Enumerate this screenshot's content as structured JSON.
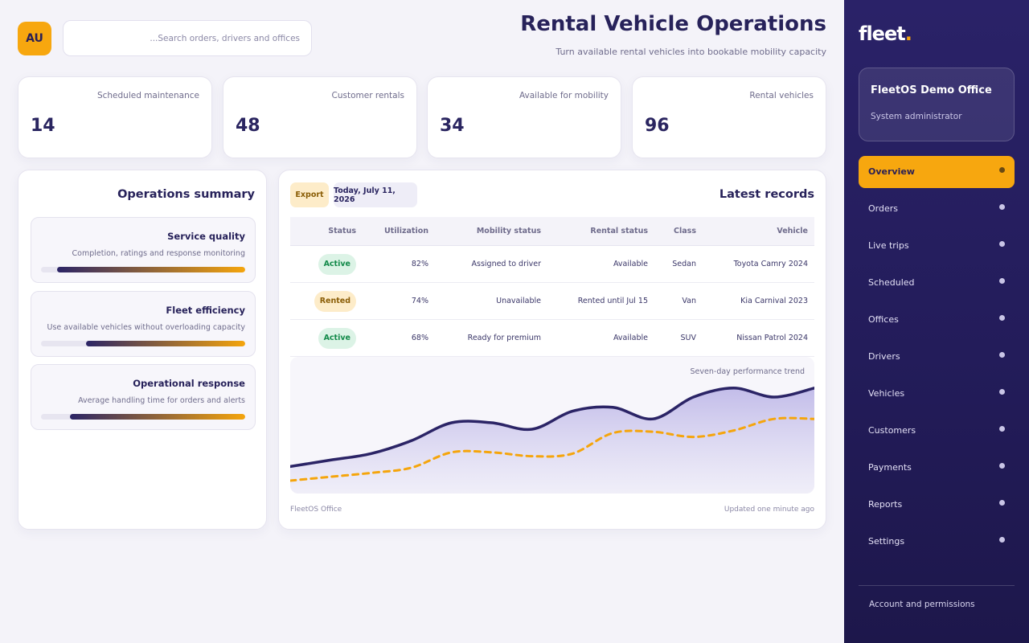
{
  "header": {
    "avatar_initials": "AU",
    "search_placeholder": "...Search orders, drivers and offices",
    "title": "Rental Vehicle Operations",
    "subtitle": "Turn available rental vehicles into bookable mobility capacity"
  },
  "stats": [
    {
      "label": "Scheduled maintenance",
      "value": "14"
    },
    {
      "label": "Customer rentals",
      "value": "48"
    },
    {
      "label": "Available for mobility",
      "value": "34"
    },
    {
      "label": "Rental vehicles",
      "value": "96"
    }
  ],
  "summary": {
    "title": "Operations summary",
    "metrics": [
      {
        "title": "Service quality",
        "desc": "Completion, ratings and response monitoring",
        "percent": 92
      },
      {
        "title": "Fleet efficiency",
        "desc": "Use available vehicles without overloading capacity",
        "percent": 78
      },
      {
        "title": "Operational response",
        "desc": "Average handling time for orders and alerts",
        "percent": 86
      }
    ]
  },
  "records": {
    "title": "Latest records",
    "export_label": "Export",
    "date_label": "Today, July 11, 2026",
    "columns": {
      "status": "Status",
      "utilization": "Utilization",
      "mobility": "Mobility status",
      "rental": "Rental status",
      "class": "Class",
      "vehicle": "Vehicle"
    },
    "rows": [
      {
        "status": "Active",
        "utilization": "82%",
        "mobility": "Assigned to driver",
        "rental": "Available",
        "class": "Sedan",
        "vehicle": "Toyota Camry 2024"
      },
      {
        "status": "Rented",
        "utilization": "74%",
        "mobility": "Unavailable",
        "rental": "Rented until Jul 15",
        "class": "Van",
        "vehicle": "Kia Carnival 2023"
      },
      {
        "status": "Active",
        "utilization": "68%",
        "mobility": "Ready for premium",
        "rental": "Available",
        "class": "SUV",
        "vehicle": "Nissan Patrol 2024"
      }
    ],
    "chart_label": "Seven-day performance trend",
    "footer_left": "FleetOS Office",
    "footer_right": "Updated one minute ago"
  },
  "chart_data": {
    "type": "area",
    "title": "Seven-day performance trend",
    "xlabel": "",
    "ylabel": "",
    "ylim": [
      0,
      100
    ],
    "grid": false,
    "legend": "none",
    "x": [
      0,
      1,
      2,
      3,
      4,
      5,
      6,
      7,
      8,
      9,
      10,
      11,
      12,
      13
    ],
    "series": [
      {
        "values": [
          21,
          26,
          31,
          41,
          55,
          55,
          50,
          64,
          67,
          58,
          75,
          82,
          75,
          82
        ],
        "color": "#2b2466"
      },
      {
        "values": [
          10,
          13,
          16,
          20,
          32,
          32,
          29,
          31,
          47,
          48,
          44,
          49,
          58,
          58
        ],
        "color": "#f5a50c"
      }
    ]
  },
  "sidebar": {
    "logo_text": "fleet",
    "logo_dot": ".",
    "office_name": "FleetOS Demo Office",
    "office_role": "System administrator",
    "items": [
      {
        "label": "Overview",
        "active": true
      },
      {
        "label": "Orders"
      },
      {
        "label": "Live trips"
      },
      {
        "label": "Scheduled"
      },
      {
        "label": "Offices"
      },
      {
        "label": "Drivers"
      },
      {
        "label": "Vehicles"
      },
      {
        "label": "Customers"
      },
      {
        "label": "Payments"
      },
      {
        "label": "Reports"
      },
      {
        "label": "Settings"
      }
    ],
    "account_link": "Account and permissions"
  },
  "colors": {
    "accent": "#f7a70f",
    "brand": "#2a2268",
    "active_badge": "#138a4a",
    "rented_badge": "#8a5d06"
  }
}
